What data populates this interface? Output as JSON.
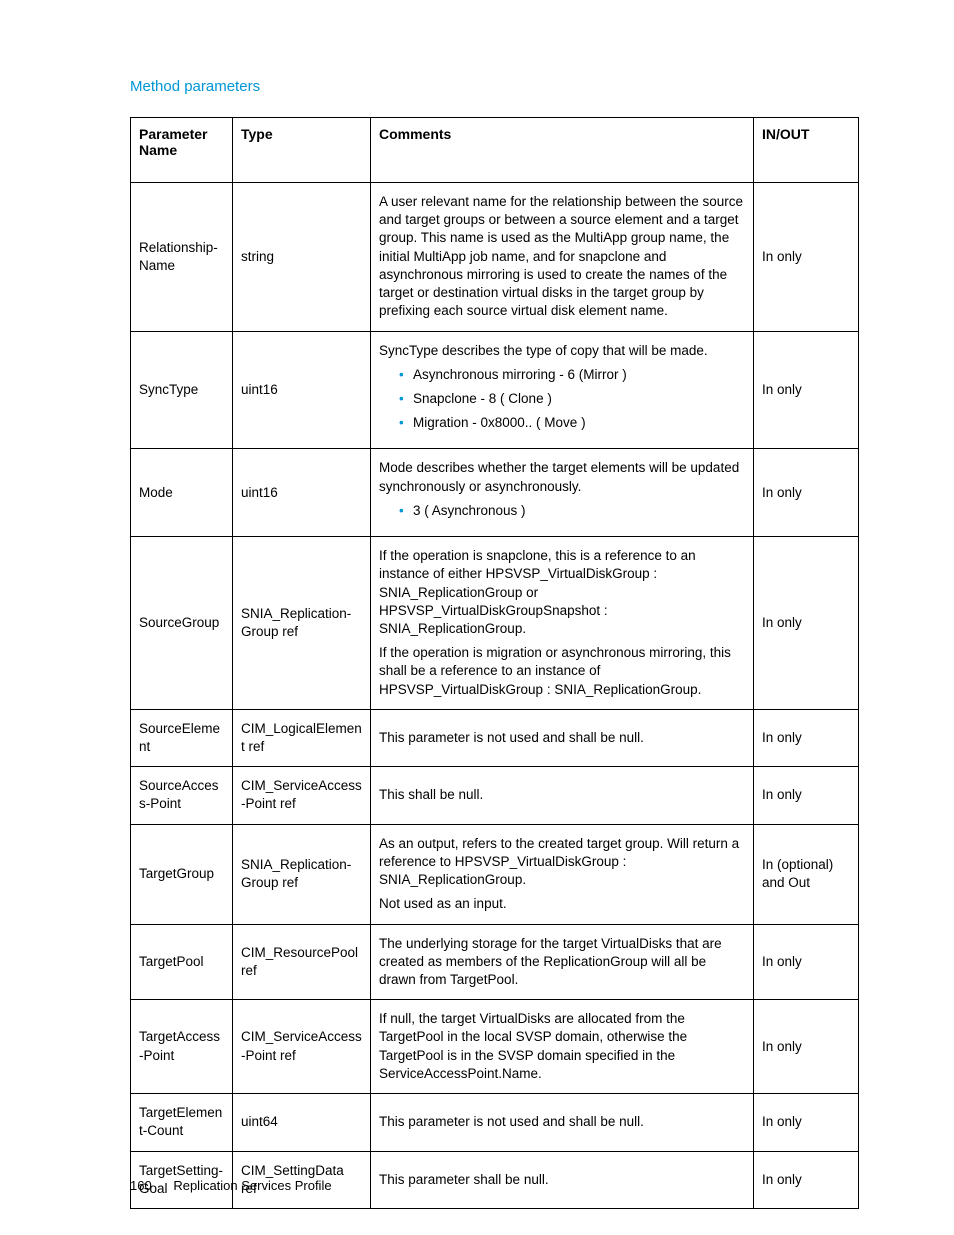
{
  "heading": "Method parameters",
  "columns": [
    "Parameter Name",
    "Type",
    "Comments",
    "IN/OUT"
  ],
  "footer": {
    "page_number": "160",
    "section": "Replication Services Profile"
  },
  "colors": {
    "accent": "#0096d6",
    "text": "#000000",
    "border": "#000000",
    "bg": "#ffffff"
  },
  "rows": [
    {
      "param": "Relationship-Name",
      "type": "string",
      "inout": "In only",
      "comments": {
        "paras": [
          "A user relevant name for the relationship between the source and target groups or between a source element and a target group. This name is used as the MultiApp group name, the initial MultiApp job name, and for snapclone and asynchronous mirroring is used to create the names of the target or destination virtual disks in the target group by prefixing each source virtual disk element name."
        ],
        "bullets": []
      }
    },
    {
      "param": "SyncType",
      "type": "uint16",
      "inout": "In only",
      "comments": {
        "paras": [
          "SyncType describes the type of copy that will be made."
        ],
        "bullets": [
          "Asynchronous mirroring - 6 (Mirror )",
          "Snapclone - 8 ( Clone )",
          "Migration - 0x8000.. ( Move )"
        ]
      }
    },
    {
      "param": "Mode",
      "type": "uint16",
      "inout": "In only",
      "comments": {
        "paras": [
          "Mode describes whether the target elements will be updated synchronously or asynchronously."
        ],
        "bullets": [
          "3 ( Asynchronous )"
        ]
      }
    },
    {
      "param": "SourceGroup",
      "type": "SNIA_Replication-Group ref",
      "inout": "In only",
      "comments": {
        "paras": [
          "If the operation is snapclone, this is a reference to an instance of either HPSVSP_VirtualDiskGroup : SNIA_ReplicationGroup or HPSVSP_VirtualDiskGroupSnapshot : SNIA_ReplicationGroup.",
          "If the operation is migration or asynchronous mirroring, this shall be a reference to an instance of HPSVSP_VirtualDiskGroup : SNIA_ReplicationGroup."
        ],
        "bullets": []
      }
    },
    {
      "param": "SourceElement",
      "type": "CIM_LogicalElement ref",
      "inout": "In only",
      "comments": {
        "paras": [
          "This parameter is not used and shall be null."
        ],
        "bullets": []
      }
    },
    {
      "param": "SourceAccess-Point",
      "type": "CIM_ServiceAccess-Point ref",
      "inout": "In only",
      "comments": {
        "paras": [
          "This shall be null."
        ],
        "bullets": []
      }
    },
    {
      "param": "TargetGroup",
      "type": "SNIA_Replication-Group ref",
      "inout": "In (optional) and Out",
      "comments": {
        "paras": [
          "As an output, refers to the created target group. Will return a reference to HPSVSP_VirtualDiskGroup : SNIA_ReplicationGroup.",
          "Not used as an input."
        ],
        "bullets": []
      }
    },
    {
      "param": "TargetPool",
      "type": "CIM_ResourcePool ref",
      "inout": "In only",
      "comments": {
        "paras": [
          "The underlying storage for the target VirtualDisks that are created as members of the ReplicationGroup will all be drawn from TargetPool."
        ],
        "bullets": []
      }
    },
    {
      "param": "TargetAccess-Point",
      "type": "CIM_ServiceAccess-Point ref",
      "inout": "In only",
      "comments": {
        "paras": [
          "If null, the target VirtualDisks are allocated from the TargetPool in the local SVSP domain, otherwise the TargetPool is in the SVSP domain specified in the ServiceAccessPoint.Name."
        ],
        "bullets": []
      }
    },
    {
      "param": "TargetElement-Count",
      "type": "uint64",
      "inout": "In only",
      "comments": {
        "paras": [
          "This parameter is not used and shall be null."
        ],
        "bullets": []
      }
    },
    {
      "param": "TargetSetting-Goal",
      "type": "CIM_SettingData ref",
      "inout": "In only",
      "comments": {
        "paras": [
          "This parameter shall be null."
        ],
        "bullets": []
      }
    }
  ]
}
